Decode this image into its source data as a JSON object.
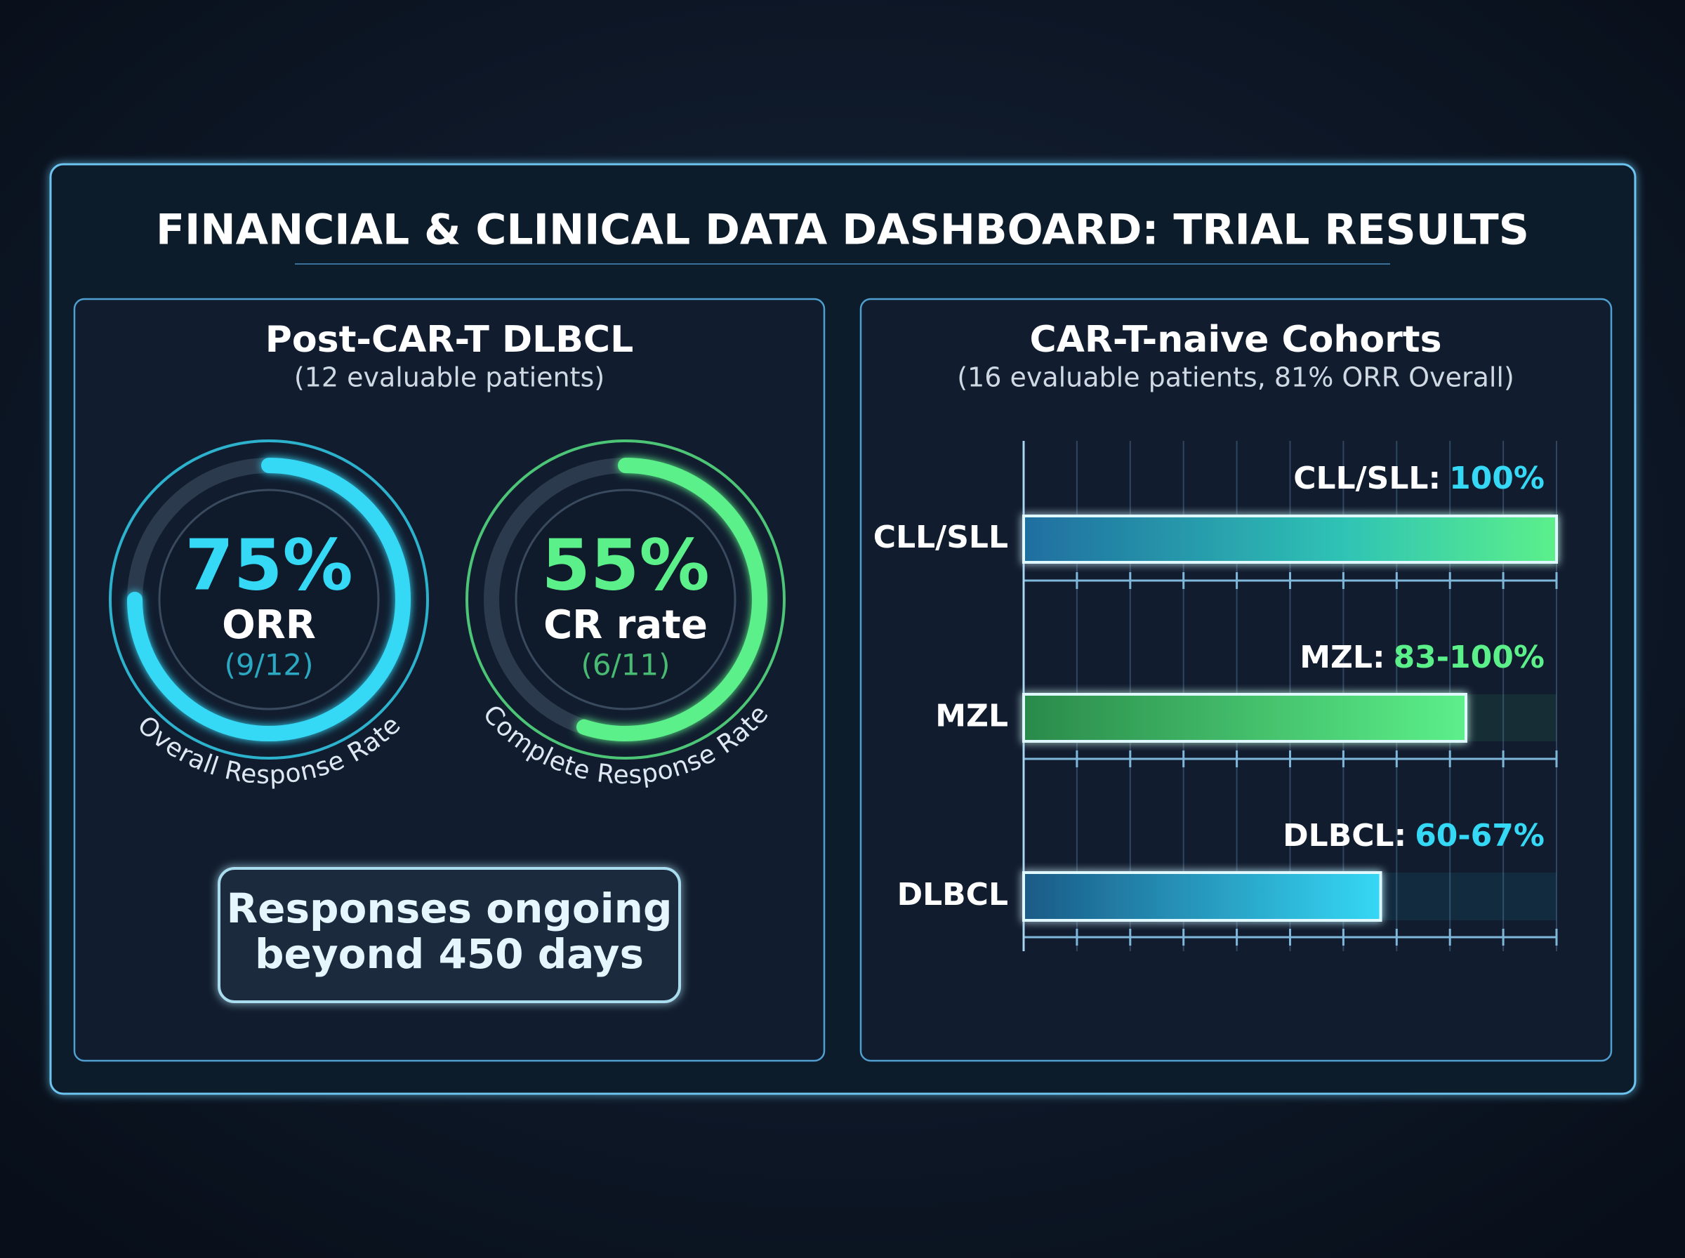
{
  "title": "FINANCIAL & CLINICAL DATA DASHBOARD: TRIAL RESULTS",
  "chart_data": [
    {
      "type": "gauge",
      "title": "Post-CAR-T DLBCL",
      "subtitle": "(12 evaluable patients)",
      "categories": [
        "ORR",
        "CR rate"
      ],
      "values": [
        75,
        55
      ],
      "value_labels": [
        "75%",
        "55%"
      ],
      "details": [
        "(9/12)",
        "(6/11)"
      ],
      "captions": [
        "Overall Response Rate",
        "Complete Response Rate"
      ],
      "colors": [
        "#35d8f5",
        "#5cf08a"
      ],
      "ylim": [
        0,
        100
      ],
      "note": [
        "Responses ongoing",
        "beyond 450 days"
      ]
    },
    {
      "type": "hbar",
      "title": "CAR-T-naive Cohorts",
      "subtitle": "(16 evaluable patients, 81% ORR Overall)",
      "categories": [
        "CLL/SLL",
        "MZL",
        "DLBCL"
      ],
      "values": [
        100,
        83,
        67
      ],
      "value_labels": [
        "100%",
        "83-100%",
        "60-67%"
      ],
      "label_separator": ":",
      "colors": [
        "#35d8f5",
        "#5cf08a",
        "#35d8f5"
      ],
      "xlim": [
        0,
        100
      ],
      "xticks": [
        0,
        10,
        20,
        30,
        40,
        50,
        60,
        70,
        80,
        90,
        100
      ],
      "grid": true
    }
  ]
}
